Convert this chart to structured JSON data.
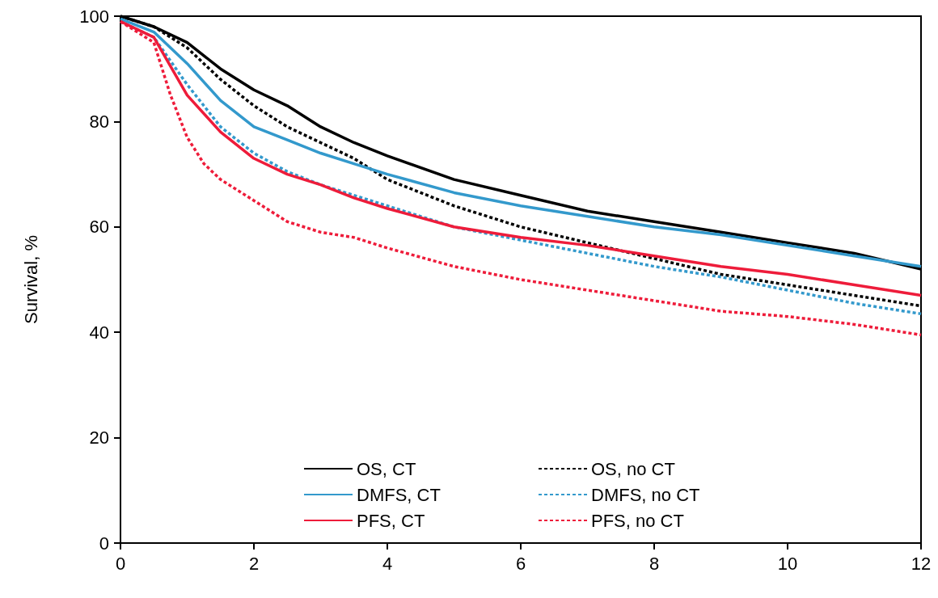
{
  "chart_data": {
    "type": "line",
    "ylabel": "Survival, %",
    "xlim": [
      0,
      12
    ],
    "xticks": [
      0,
      2,
      4,
      6,
      8,
      10,
      12
    ],
    "ylim": [
      0,
      100
    ],
    "yticks": [
      0,
      20,
      40,
      60,
      80,
      100
    ],
    "grid": false,
    "legend": "bottom",
    "marker": "none",
    "series": [
      {
        "name": "OS, CT",
        "color": "#000000",
        "line_style": "solid",
        "x": [
          0,
          0.5,
          1,
          1.5,
          2,
          2.5,
          3,
          3.5,
          4,
          5,
          6,
          7,
          8,
          9,
          10,
          11,
          12
        ],
        "values": [
          100,
          98,
          95,
          90,
          86,
          83,
          79,
          76,
          73.5,
          69,
          66,
          63,
          61,
          59,
          57,
          55,
          52
        ]
      },
      {
        "name": "OS, no CT",
        "color": "#000000",
        "line_style": "dashed",
        "x": [
          0,
          0.5,
          1,
          1.5,
          2,
          2.5,
          3,
          3.5,
          4,
          5,
          6,
          7,
          8,
          9,
          10,
          11,
          12
        ],
        "values": [
          100,
          98,
          94,
          88,
          83,
          79,
          76,
          73,
          69,
          64,
          60,
          57,
          54,
          51,
          49,
          47,
          45
        ]
      },
      {
        "name": "DMFS, CT",
        "color": "#3399cc",
        "line_style": "solid",
        "x": [
          0,
          0.5,
          1,
          1.5,
          2,
          2.5,
          3,
          3.5,
          4,
          5,
          6,
          7,
          8,
          9,
          10,
          11,
          12
        ],
        "values": [
          99.5,
          97,
          91,
          84,
          79,
          76.5,
          74,
          72,
          70,
          66.5,
          64,
          62,
          60,
          58.5,
          56.5,
          54.5,
          52.5
        ]
      },
      {
        "name": "DMFS, no CT",
        "color": "#3399cc",
        "line_style": "dashed",
        "x": [
          0,
          0.5,
          1,
          1.5,
          2,
          2.5,
          3,
          3.5,
          4,
          5,
          6,
          7,
          8,
          9,
          10,
          11,
          12
        ],
        "values": [
          99,
          96,
          87,
          79,
          74,
          70.5,
          68,
          66,
          64,
          60,
          57.5,
          55,
          52.5,
          50.5,
          48,
          45.5,
          43.5
        ]
      },
      {
        "name": "PFS, CT",
        "color": "#ee1c3a",
        "line_style": "solid",
        "x": [
          0,
          0.5,
          1,
          1.5,
          2,
          2.5,
          3,
          3.5,
          4,
          5,
          6,
          7,
          8,
          9,
          10,
          11,
          12
        ],
        "values": [
          99,
          96,
          85,
          78,
          73,
          70,
          68,
          65.5,
          63.5,
          60,
          58,
          56.5,
          54.5,
          52.5,
          51,
          49,
          47
        ]
      },
      {
        "name": "PFS, no CT",
        "color": "#ee1c3a",
        "line_style": "dashed",
        "x": [
          0,
          0.5,
          0.75,
          1,
          1.25,
          1.5,
          2,
          2.5,
          3,
          3.5,
          4,
          5,
          6,
          7,
          8,
          9,
          10,
          11,
          12
        ],
        "values": [
          99,
          95,
          85,
          77,
          72,
          69,
          65,
          61,
          59,
          58,
          56,
          52.5,
          50,
          48,
          46,
          44,
          43,
          41.5,
          39.5
        ]
      }
    ]
  }
}
